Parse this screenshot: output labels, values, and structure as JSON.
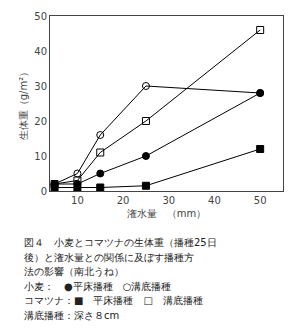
{
  "chart_data": {
    "type": "line",
    "xlabel": "潅水量　（mm）",
    "ylabel": "生体重（g/m²）",
    "x": [
      5,
      10,
      15,
      25,
      50
    ],
    "series": [
      {
        "values": [
          2,
          2,
          5,
          10,
          28
        ],
        "color": "black",
        "marker": "circle",
        "line_style": "solid"
      },
      {
        "values": [
          2,
          5,
          16,
          30,
          28
        ],
        "color": "black",
        "marker": "circle-open",
        "line_style": "solid"
      },
      {
        "values": [
          1,
          1,
          1,
          1.5,
          12
        ],
        "color": "black",
        "marker": "square",
        "line_style": "solid"
      },
      {
        "values": [
          2,
          3,
          11,
          20,
          46
        ],
        "color": "black",
        "marker": "square-open",
        "line_style": "solid"
      }
    ],
    "xlim": [
      4,
      55
    ],
    "ylim": [
      0,
      50
    ],
    "xticks": [
      10,
      20,
      30,
      40,
      50
    ],
    "yticks": [
      0,
      10,
      20,
      30,
      40,
      50
    ],
    "grid": false,
    "annotations": [
      "図４　小麦とコマツナの生体重（播種25日",
      "後）と潅水量との関係に及ぼす播種方",
      "法の影響（南北うね）",
      "小麦：　●平床播種　○溝底播種",
      "コマツナ：■　平床播種　□　溝底播種",
      "溝底播種：深さ８cm"
    ]
  }
}
